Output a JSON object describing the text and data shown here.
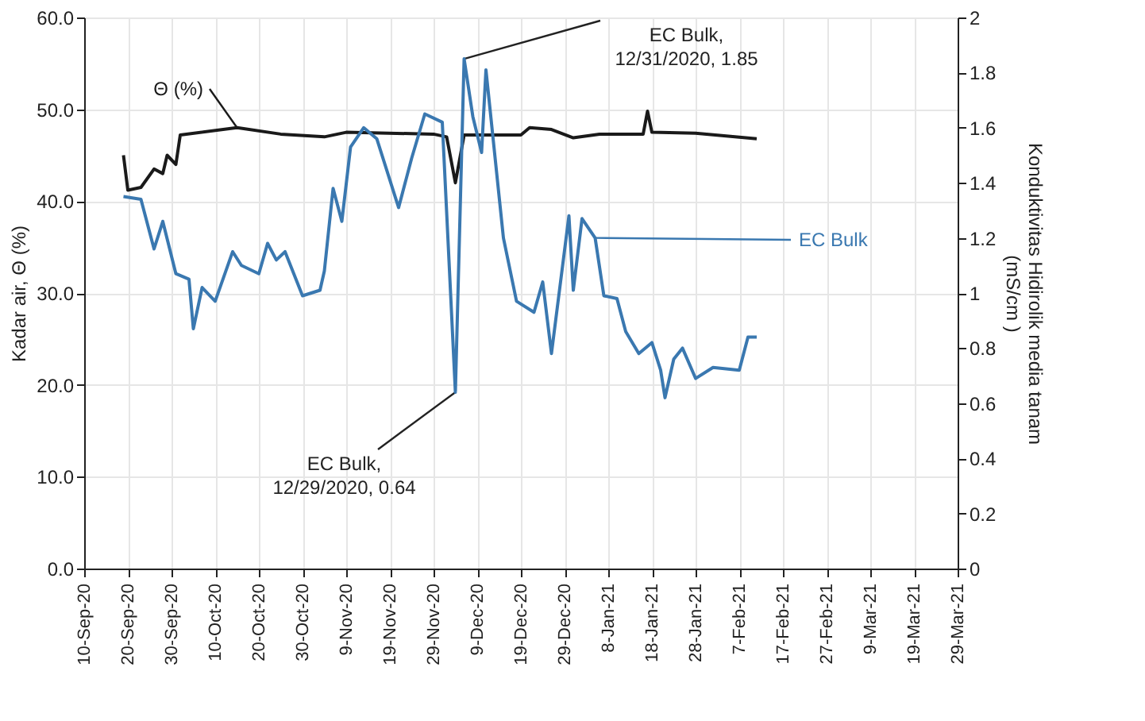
{
  "chart_data": {
    "type": "line",
    "xlabel": null,
    "ylabel": "Kadar air, Θ (%)",
    "y2label": "Konduktivitas Hidirolik media tanam\n(mS/cm )",
    "xlim": [
      "2020-09-10",
      "2021-03-29"
    ],
    "xticks": [
      {
        "value": "2020-09-10",
        "label": "10-Sep-20"
      },
      {
        "value": "2020-09-20",
        "label": "20-Sep-20"
      },
      {
        "value": "2020-09-30",
        "label": "30-Sep-20"
      },
      {
        "value": "2020-10-10",
        "label": "10-Oct-20"
      },
      {
        "value": "2020-10-20",
        "label": "20-Oct-20"
      },
      {
        "value": "2020-10-30",
        "label": "30-Oct-20"
      },
      {
        "value": "2020-11-09",
        "label": "9-Nov-20"
      },
      {
        "value": "2020-11-19",
        "label": "19-Nov-20"
      },
      {
        "value": "2020-11-29",
        "label": "29-Nov-20"
      },
      {
        "value": "2020-12-09",
        "label": "9-Dec-20"
      },
      {
        "value": "2020-12-19",
        "label": "19-Dec-20"
      },
      {
        "value": "2020-12-29",
        "label": "29-Dec-20"
      },
      {
        "value": "2021-01-08",
        "label": "8-Jan-21"
      },
      {
        "value": "2021-01-18",
        "label": "18-Jan-21"
      },
      {
        "value": "2021-01-28",
        "label": "28-Jan-21"
      },
      {
        "value": "2021-02-07",
        "label": "7-Feb-21"
      },
      {
        "value": "2021-02-17",
        "label": "17-Feb-21"
      },
      {
        "value": "2021-02-27",
        "label": "27-Feb-21"
      },
      {
        "value": "2021-03-09",
        "label": "9-Mar-21"
      },
      {
        "value": "2021-03-19",
        "label": "19-Mar-21"
      },
      {
        "value": "2021-03-29",
        "label": "29-Mar-21"
      }
    ],
    "ylim": [
      0,
      60
    ],
    "yticks": [
      {
        "value": 0,
        "label": "0.0"
      },
      {
        "value": 10,
        "label": "10.0"
      },
      {
        "value": 20,
        "label": "20.0"
      },
      {
        "value": 30,
        "label": "30.0"
      },
      {
        "value": 40,
        "label": "40.0"
      },
      {
        "value": 50,
        "label": "50.0"
      },
      {
        "value": 60,
        "label": "60.0"
      }
    ],
    "y2lim": [
      0,
      2
    ],
    "y2ticks": [
      0,
      0.2,
      0.4,
      0.6,
      0.8,
      1,
      1.2,
      1.4,
      1.6,
      1.8,
      2
    ],
    "grid": true,
    "legend": false,
    "marker": "none",
    "line_style": "solid",
    "annotations": [
      {
        "text": "EC Bulk,\n12/29/2020, 0.64",
        "x": "2020-12-04",
        "y": 19.2
      },
      {
        "text": "EC Bulk,\n12/31/2020, 1.85",
        "x": "2020-12-06",
        "y": 55.5
      }
    ],
    "series": [
      {
        "name": "Θ (%)",
        "color": "#1a1a1a",
        "x": [
          "2020-09-19",
          "2020-09-20",
          "2020-09-23",
          "2020-09-26",
          "2020-09-28",
          "2020-09-29",
          "2020-10-01",
          "2020-10-02",
          "2020-10-15",
          "2020-10-25",
          "2020-11-04",
          "2020-11-09",
          "2020-11-29",
          "2020-12-02",
          "2020-12-04",
          "2020-12-06",
          "2020-12-19",
          "2020-12-21",
          "2020-12-26",
          "2020-12-31",
          "2021-01-06",
          "2021-01-16",
          "2021-01-17",
          "2021-01-18",
          "2021-01-28",
          "2021-02-11"
        ],
        "values": [
          45.0,
          41.2,
          41.5,
          43.5,
          43.0,
          45.0,
          44.0,
          47.2,
          48.0,
          47.3,
          47.0,
          47.5,
          47.3,
          47.0,
          42.0,
          47.2,
          47.2,
          48.0,
          47.8,
          46.9,
          47.3,
          47.3,
          49.8,
          47.5,
          47.4,
          46.8
        ]
      },
      {
        "name": "EC Bulk",
        "color": "#3a78b0",
        "axis": "y2",
        "x": [
          "2020-09-19",
          "2020-09-23",
          "2020-09-26",
          "2020-09-28",
          "2020-10-01",
          "2020-10-04",
          "2020-10-05",
          "2020-10-07",
          "2020-10-10",
          "2020-10-14",
          "2020-10-16",
          "2020-10-20",
          "2020-10-22",
          "2020-10-24",
          "2020-10-26",
          "2020-10-30",
          "2020-11-03",
          "2020-11-04",
          "2020-11-06",
          "2020-11-08",
          "2020-11-10",
          "2020-11-13",
          "2020-11-16",
          "2020-11-21",
          "2020-11-24",
          "2020-11-27",
          "2020-12-01",
          "2020-12-04",
          "2020-12-06",
          "2020-12-08",
          "2020-12-10",
          "2020-12-11",
          "2020-12-15",
          "2020-12-18",
          "2020-12-22",
          "2020-12-24",
          "2020-12-26",
          "2020-12-28",
          "2020-12-30",
          "2020-12-31",
          "2021-01-02",
          "2021-01-05",
          "2021-01-07",
          "2021-01-10",
          "2021-01-12",
          "2021-01-15",
          "2021-01-18",
          "2021-01-20",
          "2021-01-21",
          "2021-01-23",
          "2021-01-25",
          "2021-01-28",
          "2021-02-01",
          "2021-02-07",
          "2021-02-09",
          "2021-02-11"
        ],
        "values": [
          1.35,
          1.34,
          1.16,
          1.26,
          1.07,
          1.05,
          0.87,
          1.02,
          0.97,
          1.15,
          1.1,
          1.07,
          1.18,
          1.12,
          1.15,
          0.99,
          1.01,
          1.08,
          1.38,
          1.26,
          1.53,
          1.6,
          1.56,
          1.31,
          1.49,
          1.65,
          1.62,
          0.64,
          1.85,
          1.64,
          1.51,
          1.81,
          1.2,
          0.97,
          0.93,
          1.04,
          0.78,
          1.03,
          1.28,
          1.01,
          1.27,
          1.2,
          0.99,
          0.98,
          0.86,
          0.78,
          0.82,
          0.72,
          0.62,
          0.76,
          0.8,
          0.69,
          0.73,
          0.72,
          0.84,
          0.84
        ]
      }
    ]
  }
}
